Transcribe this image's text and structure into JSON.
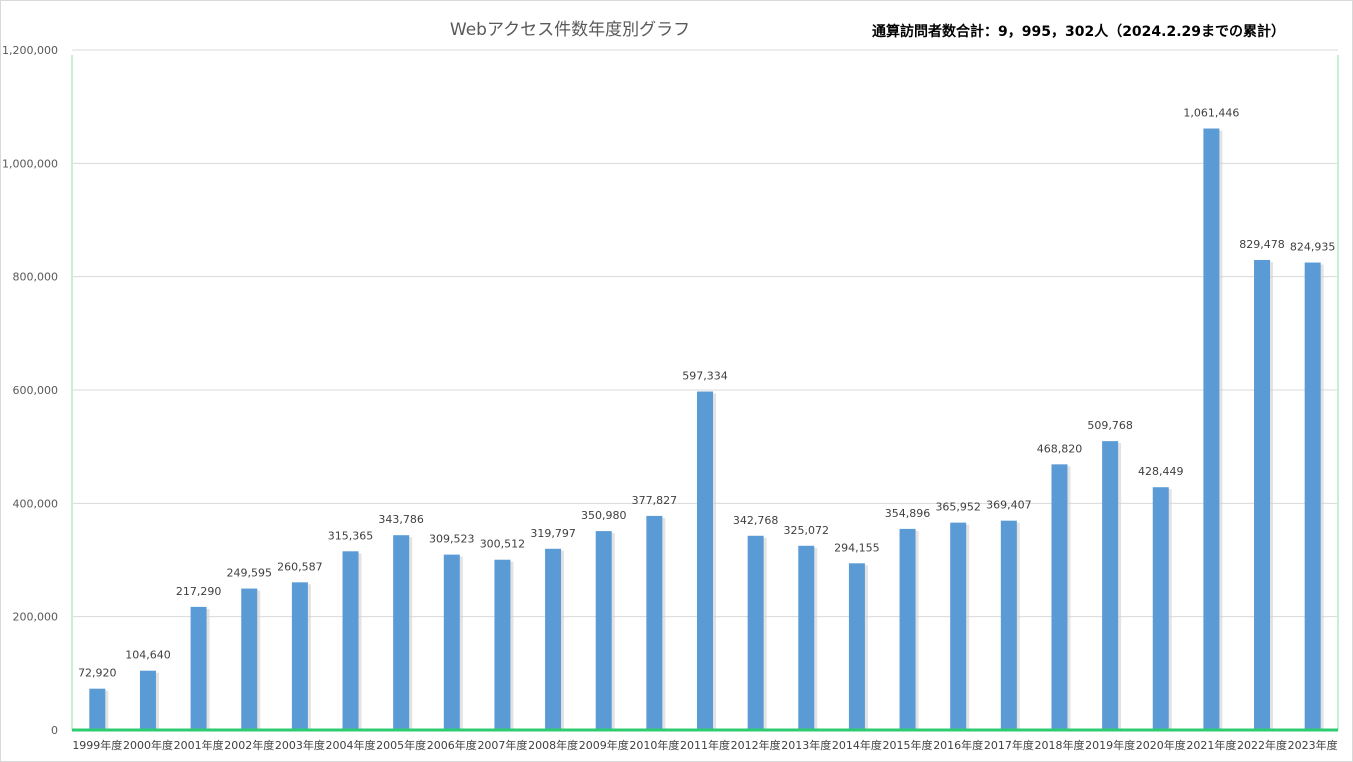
{
  "title": "Webアクセス件数年度別グラフ",
  "note": "通算訪問者数合計：9，995，302人（2024.2.29までの累計）",
  "colors": {
    "bar": "#5b9bd5",
    "grid": "#d9d9d9",
    "axis_accent": "#2ecc71",
    "text": "#595959"
  },
  "chart_data": {
    "type": "bar",
    "title": "Webアクセス件数年度別グラフ",
    "xlabel": "",
    "ylabel": "",
    "ylim": [
      0,
      1200000
    ],
    "yticks": [
      0,
      200000,
      400000,
      600000,
      800000,
      1000000,
      1200000
    ],
    "ytick_labels": [
      "0",
      "200,000",
      "400,000",
      "600,000",
      "800,000",
      "1,000,000",
      "1,200,000"
    ],
    "grid": true,
    "legend": "none",
    "categories": [
      "1999年度",
      "2000年度",
      "2001年度",
      "2002年度",
      "2003年度",
      "2004年度",
      "2005年度",
      "2006年度",
      "2007年度",
      "2008年度",
      "2009年度",
      "2010年度",
      "2011年度",
      "2012年度",
      "2013年度",
      "2014年度",
      "2015年度",
      "2016年度",
      "2017年度",
      "2018年度",
      "2019年度",
      "2020年度",
      "2021年度",
      "2022年度",
      "2023年度"
    ],
    "values": [
      72920,
      104640,
      217290,
      249595,
      260587,
      315365,
      343786,
      309523,
      300512,
      319797,
      350980,
      377827,
      597334,
      342768,
      325072,
      294155,
      354896,
      365952,
      369407,
      468820,
      509768,
      428449,
      1061446,
      829478,
      824935
    ],
    "value_labels": [
      "72,920",
      "104,640",
      "217,290",
      "249,595",
      "260,587",
      "315,365",
      "343,786",
      "309,523",
      "300,512",
      "319,797",
      "350,980",
      "377,827",
      "597,334",
      "342,768",
      "325,072",
      "294,155",
      "354,896",
      "365,952",
      "369,407",
      "468,820",
      "509,768",
      "428,449",
      "1,061,446",
      "829,478",
      "824,935"
    ]
  }
}
